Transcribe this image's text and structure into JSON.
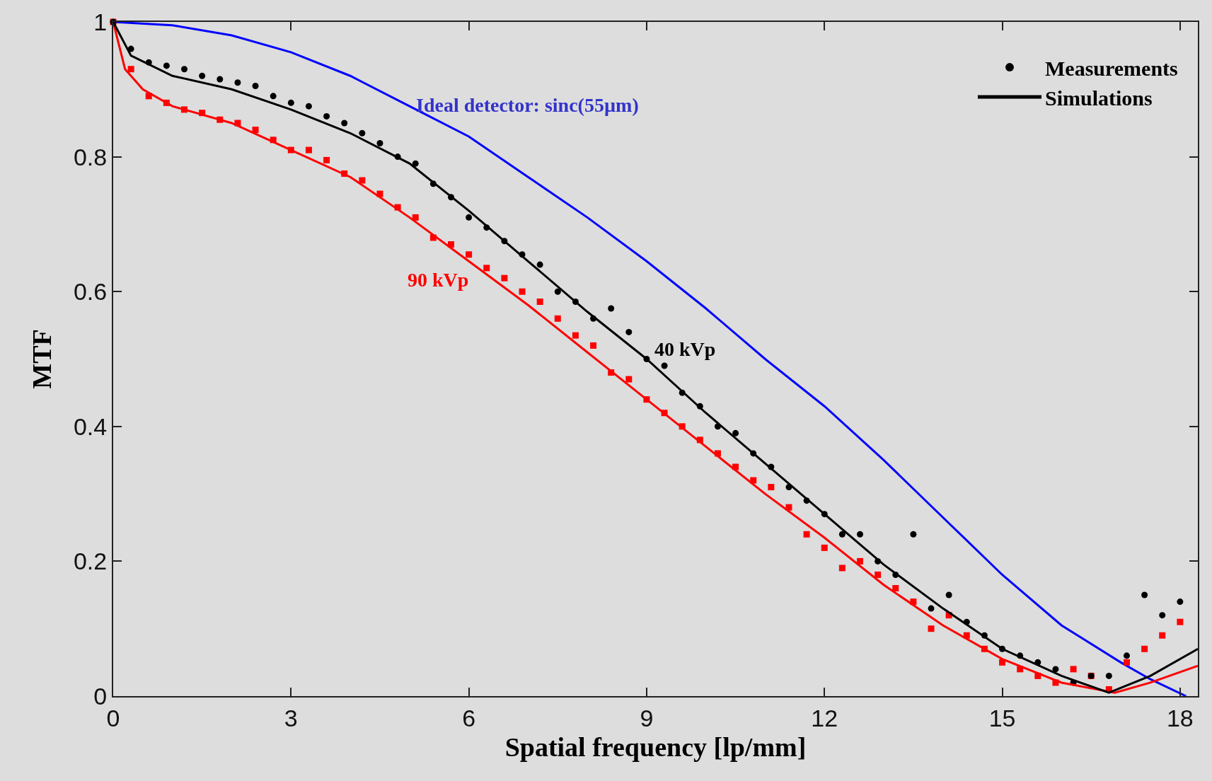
{
  "chart_data": {
    "type": "scatter",
    "xlabel": "Spatial frequency [lp/mm]",
    "ylabel": "MTF",
    "xlim": [
      0,
      18.3
    ],
    "xticks": [
      0,
      3,
      6,
      9,
      12,
      15,
      18
    ],
    "ylim": [
      0,
      1
    ],
    "yticks": [
      0,
      0.2,
      0.4,
      0.6,
      0.8,
      {
        "value": 1,
        "label": "1"
      }
    ],
    "grid": false,
    "legend": "top right",
    "series": [
      {
        "type": "line",
        "color": "#0000ff",
        "x": [
          0,
          1,
          2,
          3,
          4,
          5,
          6,
          7,
          8,
          9,
          10,
          11,
          12,
          13,
          14,
          15,
          16,
          17,
          17.5,
          18.1
        ],
        "values": [
          1.0,
          0.995,
          0.98,
          0.955,
          0.92,
          0.875,
          0.83,
          0.77,
          0.71,
          0.645,
          0.575,
          0.5,
          0.43,
          0.35,
          0.265,
          0.18,
          0.105,
          0.05,
          0.025,
          0.0
        ]
      },
      {
        "type": "scatter",
        "marker": "square",
        "color": "#ff0000",
        "x": [
          0,
          0.3,
          0.6,
          0.9,
          1.2,
          1.5,
          1.8,
          2.1,
          2.4,
          2.7,
          3.0,
          3.3,
          3.6,
          3.9,
          4.2,
          4.5,
          4.8,
          5.1,
          5.4,
          5.7,
          6.0,
          6.3,
          6.6,
          6.9,
          7.2,
          7.5,
          7.8,
          8.1,
          8.4,
          8.7,
          9.0,
          9.3,
          9.6,
          9.9,
          10.2,
          10.5,
          10.8,
          11.1,
          11.4,
          11.7,
          12.0,
          12.3,
          12.6,
          12.9,
          13.2,
          13.5,
          13.8,
          14.1,
          14.4,
          14.7,
          15.0,
          15.3,
          15.6,
          15.9,
          16.2,
          16.5,
          16.8,
          17.1,
          17.4,
          17.7,
          18.0
        ],
        "values": [
          1.0,
          0.93,
          0.89,
          0.88,
          0.87,
          0.865,
          0.855,
          0.85,
          0.84,
          0.825,
          0.81,
          0.81,
          0.795,
          0.775,
          0.765,
          0.745,
          0.725,
          0.71,
          0.68,
          0.67,
          0.655,
          0.635,
          0.62,
          0.6,
          0.585,
          0.56,
          0.535,
          0.52,
          0.48,
          0.47,
          0.44,
          0.42,
          0.4,
          0.38,
          0.36,
          0.34,
          0.32,
          0.31,
          0.28,
          0.24,
          0.22,
          0.19,
          0.2,
          0.18,
          0.16,
          0.14,
          0.1,
          0.12,
          0.09,
          0.07,
          0.05,
          0.04,
          0.03,
          0.02,
          0.04,
          0.03,
          0.01,
          0.05,
          0.07,
          0.09,
          0.11
        ]
      },
      {
        "marker": "circle",
        "color": "#000000",
        "name": "Measurements",
        "x": [
          0,
          0.3,
          0.6,
          0.9,
          1.2,
          1.5,
          1.8,
          2.1,
          2.4,
          2.7,
          3.0,
          3.3,
          3.6,
          3.9,
          4.2,
          4.5,
          4.8,
          5.1,
          5.4,
          5.7,
          6.0,
          6.3,
          6.6,
          6.9,
          7.2,
          7.5,
          7.8,
          8.1,
          8.4,
          8.7,
          9.0,
          9.3,
          9.6,
          9.9,
          10.2,
          10.5,
          10.8,
          11.1,
          11.4,
          11.7,
          12.0,
          12.3,
          12.6,
          12.9,
          13.2,
          13.5,
          13.8,
          14.1,
          14.4,
          14.7,
          15.0,
          15.3,
          15.6,
          15.9,
          16.2,
          16.5,
          16.8,
          17.1,
          17.4,
          17.7,
          18.0
        ],
        "values": [
          1.0,
          0.96,
          0.94,
          0.935,
          0.93,
          0.92,
          0.915,
          0.91,
          0.905,
          0.89,
          0.88,
          0.875,
          0.86,
          0.85,
          0.835,
          0.82,
          0.8,
          0.79,
          0.76,
          0.74,
          0.71,
          0.695,
          0.675,
          0.655,
          0.64,
          0.6,
          0.585,
          0.56,
          0.575,
          0.54,
          0.5,
          0.49,
          0.45,
          0.43,
          0.4,
          0.39,
          0.36,
          0.34,
          0.31,
          0.29,
          0.27,
          0.24,
          0.24,
          0.2,
          0.18,
          0.24,
          0.13,
          0.15,
          0.11,
          0.09,
          0.07,
          0.06,
          0.05,
          0.04,
          0.02,
          0.03,
          0.03,
          0.06,
          0.15,
          0.12,
          0.14
        ]
      },
      {
        "type": "line",
        "color": "#ff0000",
        "x": [
          0,
          0.2,
          0.5,
          1,
          2,
          3,
          4,
          5,
          6,
          7,
          8,
          9,
          10,
          11,
          12,
          13,
          14,
          15,
          16,
          16.9,
          17.5,
          18.3
        ],
        "values": [
          1.0,
          0.93,
          0.9,
          0.875,
          0.85,
          0.81,
          0.77,
          0.71,
          0.645,
          0.58,
          0.51,
          0.44,
          0.37,
          0.3,
          0.235,
          0.165,
          0.105,
          0.055,
          0.02,
          0.005,
          0.02,
          0.045
        ]
      },
      {
        "type": "line",
        "color": "#000000",
        "name": "Simulations",
        "x": [
          0,
          0.3,
          1,
          2,
          3,
          4,
          5,
          6,
          7,
          8,
          9,
          10,
          11,
          12,
          13,
          14,
          15,
          16,
          16.8,
          17.5,
          18.3
        ],
        "values": [
          1.0,
          0.95,
          0.92,
          0.9,
          0.87,
          0.835,
          0.79,
          0.72,
          0.645,
          0.57,
          0.5,
          0.42,
          0.345,
          0.27,
          0.195,
          0.13,
          0.07,
          0.03,
          0.005,
          0.03,
          0.07
        ]
      }
    ],
    "annotations": [
      "Ideal detector: sinc(55µm)",
      "90 kVp",
      "40 kVp"
    ]
  }
}
